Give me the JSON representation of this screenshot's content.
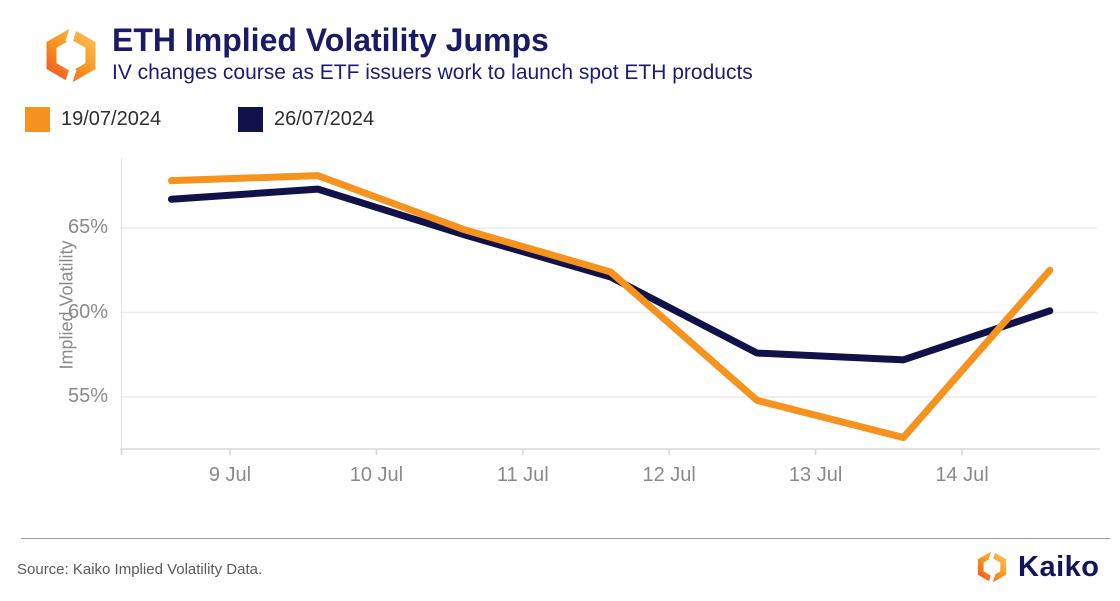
{
  "header": {
    "title": "ETH Implied Volatility Jumps",
    "subtitle": "IV changes course as ETF issuers work to launch spot ETH products"
  },
  "legend": [
    {
      "label": "19/07/2024",
      "color": "#F6921E"
    },
    {
      "label": "26/07/2024",
      "color": "#12124A"
    }
  ],
  "chart_data": {
    "type": "line",
    "title": "ETH Implied Volatility Jumps",
    "xlabel": "",
    "ylabel": "Implied Volatility",
    "x_tick_labels": [
      "9 Jul",
      "10 Jul",
      "11 Jul",
      "12 Jul",
      "13 Jul",
      "14 Jul"
    ],
    "x_offsets_days_from_9jul": [
      -0.4,
      0.6,
      1.6,
      2.6,
      3.6,
      4.6,
      5.6
    ],
    "y_ticks": [
      65,
      60,
      55
    ],
    "y_tick_labels": [
      "65%",
      "60%",
      "55%"
    ],
    "ylim": [
      52,
      69
    ],
    "grid": true,
    "legend_position": "top-left",
    "series": [
      {
        "name": "19/07/2024",
        "color": "#F6921E",
        "values": [
          67.8,
          68.1,
          64.9,
          62.4,
          54.8,
          52.6,
          62.5
        ]
      },
      {
        "name": "26/07/2024",
        "color": "#12124A",
        "values": [
          66.7,
          67.3,
          64.6,
          62.1,
          57.6,
          57.2,
          60.1
        ]
      }
    ]
  },
  "footer": {
    "source": "Source: Kaiko Implied Volatility Data.",
    "brand": "Kaiko"
  },
  "colors": {
    "accent_orange": "#F6921E",
    "accent_navy": "#12124A",
    "title_navy": "#1A1A66",
    "axis_gray": "#8A8A8A",
    "gridline": "#ECECEC"
  }
}
